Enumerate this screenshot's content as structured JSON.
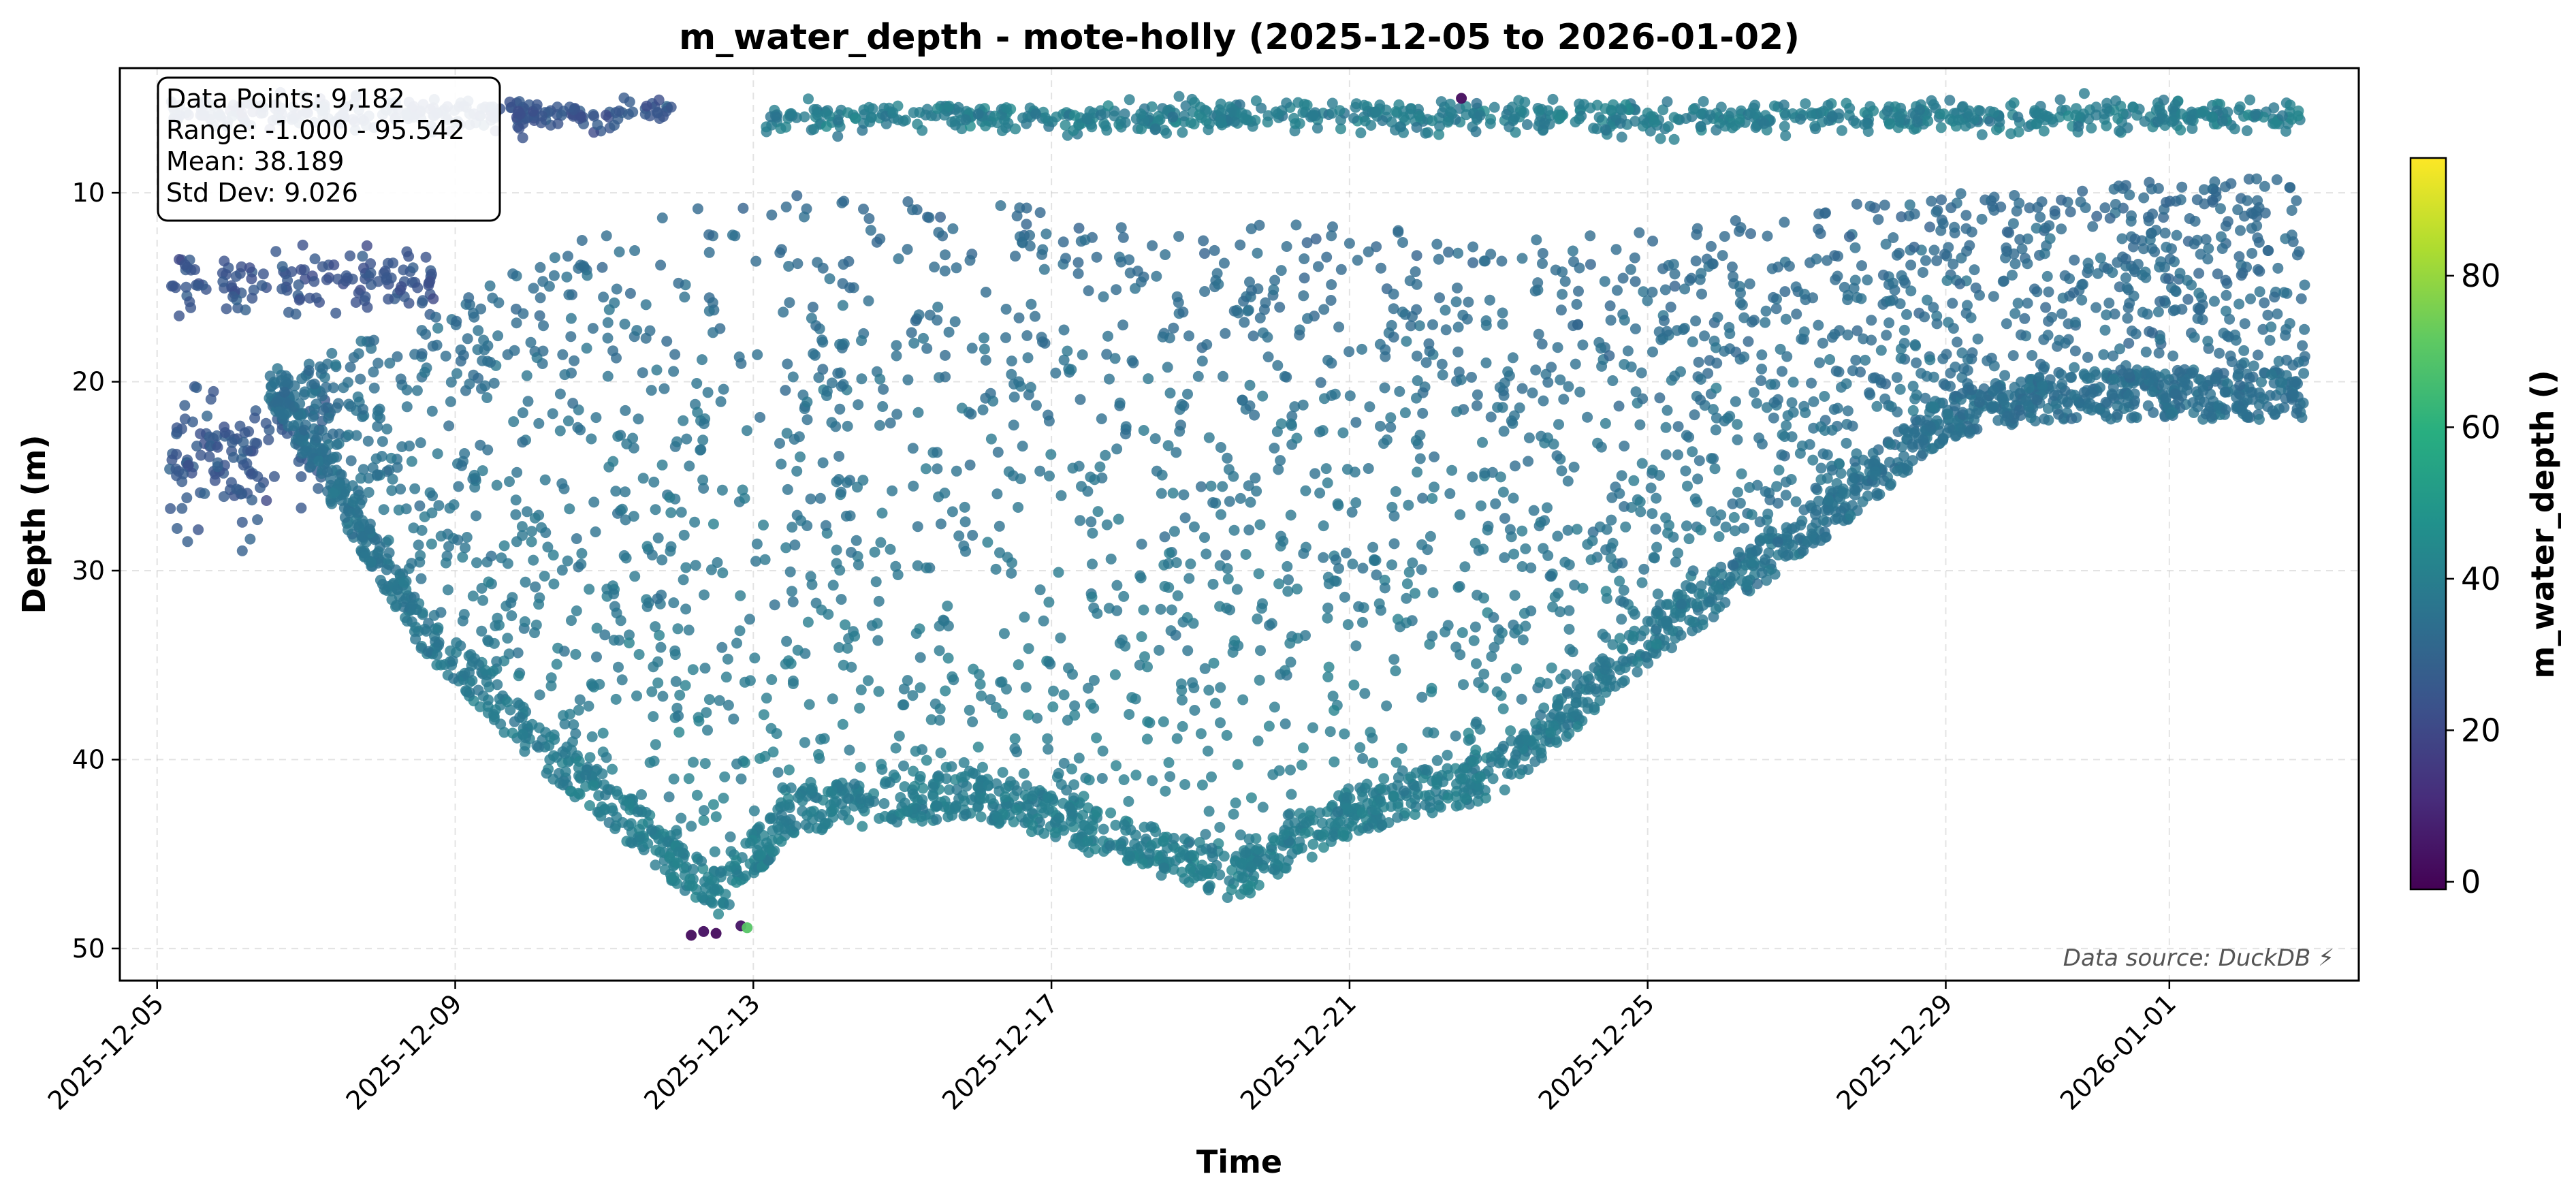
{
  "chart_data": {
    "type": "scatter",
    "title": "m_water_depth - mote-holly (2025-12-05 to 2026-01-02)",
    "xlabel": "Time",
    "ylabel": "Depth (m)",
    "x_type": "date",
    "xlim": [
      "2025-12-04T12:00",
      "2026-01-03T13:00"
    ],
    "ylim": [
      51.7,
      3.4
    ],
    "y_inverted": true,
    "x_ticks": [
      "2025-12-05",
      "2025-12-09",
      "2025-12-13",
      "2025-12-17",
      "2025-12-21",
      "2025-12-25",
      "2025-12-29",
      "2026-01-01"
    ],
    "y_ticks": [
      10,
      20,
      30,
      40,
      50
    ],
    "grid": true,
    "colormap": "viridis",
    "color_value_name": "m_water_depth",
    "colorbar": {
      "label": "m_water_depth ()",
      "range": [
        -1.0,
        95.542
      ],
      "ticks": [
        0,
        20,
        40,
        60,
        80
      ]
    },
    "stats_box": {
      "placement": "top-left",
      "lines": [
        "Data Points: 9,182",
        "Range: -1.000 - 95.542",
        "Mean: 38.189",
        "Std Dev: 9.026"
      ]
    },
    "source_note": "Data source: DuckDB ⚡",
    "series": [
      {
        "segments": [
          {
            "from": "2025-12-05T04:00",
            "to": "2025-12-11T22:00",
            "depth": 5.8,
            "jitter": 0.6,
            "value": 25
          },
          {
            "from": "2025-12-13T04:00",
            "to": "2026-01-02T20:00",
            "depth": 6.0,
            "jitter": 0.6,
            "value": 40
          },
          {
            "from": "2025-12-05T04:00",
            "to": "2025-12-08T18:00",
            "depth": 14.5,
            "jitter": 1.2,
            "value": 25
          },
          {
            "from": "2025-12-05T04:00",
            "to": "2025-12-07T08:00",
            "depth": 23.5,
            "jitter": 2.0,
            "value": 26
          },
          {
            "from": "2025-12-05T04:00",
            "to": "2025-12-06T12:00",
            "depth": 25.0,
            "jitter": 2.5,
            "value": 27
          }
        ],
        "envelope": {
          "top_depth": 11.5,
          "bottom_points": [
            [
              "2025-12-06T12:00",
              21
            ],
            [
              "2025-12-08T12:00",
              34
            ],
            [
              "2025-12-10T00:00",
              40
            ],
            [
              "2025-12-11T12:00",
              45
            ],
            [
              "2025-12-12T12:00",
              48.5
            ],
            [
              "2025-12-13T12:00",
              44
            ],
            [
              "2025-12-16T00:00",
              43
            ],
            [
              "2025-12-19T12:00",
              47.5
            ],
            [
              "2025-12-21T00:00",
              44
            ],
            [
              "2025-12-23T00:00",
              42
            ],
            [
              "2025-12-25T00:00",
              35
            ],
            [
              "2025-12-27T12:00",
              28
            ],
            [
              "2025-12-29T00:00",
              23
            ],
            [
              "2025-12-30T12:00",
              22
            ],
            [
              "2026-01-02T20:00",
              22
            ]
          ],
          "top_points": [
            [
              "2025-12-06T12:00",
              20
            ],
            [
              "2025-12-11T12:00",
              11
            ],
            [
              "2025-12-13T12:00",
              10
            ],
            [
              "2025-12-22T00:00",
              12
            ],
            [
              "2025-12-25T00:00",
              12
            ],
            [
              "2025-12-29T00:00",
              10
            ],
            [
              "2026-01-02T20:00",
              9
            ]
          ]
        },
        "outliers": [
          {
            "x": "2025-12-12T04:00",
            "y": 49.3,
            "value": 2
          },
          {
            "x": "2025-12-12T08:00",
            "y": 49.1,
            "value": 3
          },
          {
            "x": "2025-12-12T12:00",
            "y": 49.2,
            "value": 2
          },
          {
            "x": "2025-12-12T20:00",
            "y": 48.8,
            "value": 4
          },
          {
            "x": "2025-12-12T22:00",
            "y": 48.9,
            "value": 70
          },
          {
            "x": "2025-12-22T12:00",
            "y": 5.0,
            "value": 2
          }
        ],
        "n_points": 9182
      }
    ]
  }
}
